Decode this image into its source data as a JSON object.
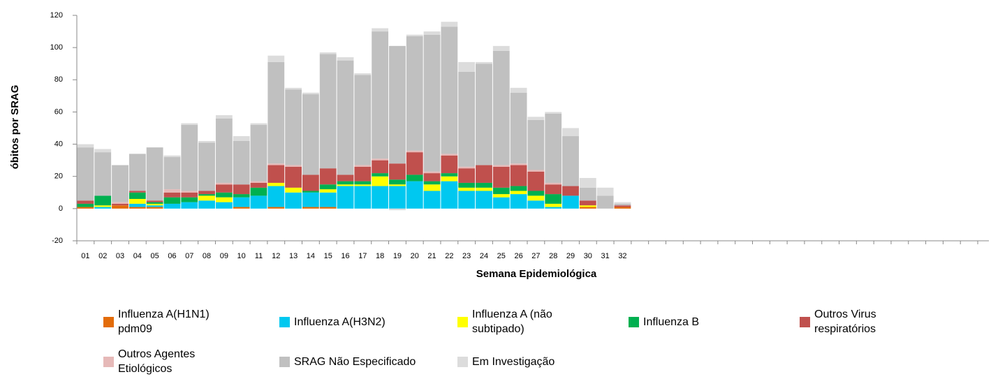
{
  "chart_data": {
    "type": "stacked_bar",
    "y_label": "óbitos por SRAG",
    "x_label": "Semana Epidemiológica",
    "categories": [
      "01",
      "02",
      "03",
      "04",
      "05",
      "06",
      "07",
      "08",
      "09",
      "10",
      "11",
      "12",
      "13",
      "14",
      "15",
      "16",
      "17",
      "18",
      "19",
      "20",
      "21",
      "22",
      "23",
      "24",
      "25",
      "26",
      "27",
      "28",
      "29",
      "30",
      "31",
      "32",
      null,
      null,
      null,
      null,
      null,
      null,
      null,
      null,
      null,
      null,
      null,
      null,
      null,
      null,
      null,
      null,
      null,
      null,
      null,
      null
    ],
    "ylim": [
      -20,
      120
    ],
    "yticks": [
      -20,
      0,
      20,
      40,
      60,
      80,
      100,
      120
    ],
    "series": [
      {
        "name": "Influenza A(H1N1) pdm09",
        "color": "#e36c0a",
        "values": [
          1,
          0,
          2,
          1,
          1,
          0,
          0,
          0,
          0,
          1,
          0,
          1,
          0,
          1,
          1,
          0,
          0,
          0,
          0,
          0,
          0,
          0,
          0,
          0,
          0,
          0,
          0,
          0,
          0,
          1,
          0,
          1,
          null,
          null,
          null,
          null,
          null,
          null,
          null,
          null,
          null,
          null,
          null,
          null,
          null,
          null,
          null,
          null,
          null,
          null,
          null,
          null
        ]
      },
      {
        "name": "Influenza A(H3N2)",
        "color": "#00c8f0",
        "values": [
          0,
          1,
          0,
          2,
          1,
          3,
          4,
          5,
          4,
          6,
          8,
          13,
          10,
          9,
          9,
          14,
          14,
          14,
          14,
          17,
          11,
          17,
          11,
          11,
          7,
          9,
          5,
          1,
          8,
          0,
          0,
          0,
          null,
          null,
          null,
          null,
          null,
          null,
          null,
          null,
          null,
          null,
          null,
          null,
          null,
          null,
          null,
          null,
          null,
          null,
          null,
          null
        ]
      },
      {
        "name": "Influenza A (não subtipado)",
        "color": "#ffff00",
        "values": [
          0,
          1,
          0,
          3,
          1,
          0,
          0,
          3,
          3,
          0,
          0,
          2,
          3,
          0,
          2,
          1,
          1,
          6,
          1,
          0,
          4,
          3,
          2,
          2,
          2,
          2,
          3,
          2,
          0,
          1,
          0,
          0,
          null,
          null,
          null,
          null,
          null,
          null,
          null,
          null,
          null,
          null,
          null,
          null,
          null,
          null,
          null,
          null,
          null,
          null,
          null,
          null
        ]
      },
      {
        "name": "Influenza B",
        "color": "#00b050",
        "values": [
          2,
          6,
          0,
          4,
          1,
          4,
          3,
          1,
          3,
          2,
          5,
          0,
          0,
          1,
          3,
          2,
          2,
          2,
          3,
          4,
          2,
          2,
          3,
          3,
          4,
          3,
          3,
          6,
          0,
          0,
          0,
          0,
          null,
          null,
          null,
          null,
          null,
          null,
          null,
          null,
          null,
          null,
          null,
          null,
          null,
          null,
          null,
          null,
          null,
          null,
          null,
          null
        ]
      },
      {
        "name": "Outros Virus respiratórios",
        "color": "#c0504d",
        "values": [
          2,
          0,
          1,
          1,
          1,
          3,
          3,
          2,
          5,
          6,
          3,
          11,
          13,
          10,
          10,
          4,
          9,
          8,
          10,
          14,
          5,
          11,
          9,
          11,
          13,
          13,
          12,
          6,
          6,
          3,
          0,
          1,
          null,
          null,
          null,
          null,
          null,
          null,
          null,
          null,
          null,
          null,
          null,
          null,
          null,
          null,
          null,
          null,
          null,
          null,
          null,
          null
        ]
      },
      {
        "name": "Outros Agentes Etiológicos",
        "color": "#e6b9b8",
        "values": [
          0,
          0,
          1,
          0,
          0,
          2,
          1,
          0,
          1,
          0,
          1,
          1,
          1,
          0,
          0,
          0,
          1,
          1,
          0,
          1,
          1,
          1,
          1,
          0,
          1,
          1,
          1,
          1,
          0,
          0,
          0,
          0,
          null,
          null,
          null,
          null,
          null,
          null,
          null,
          null,
          null,
          null,
          null,
          null,
          null,
          null,
          null,
          null,
          null,
          null,
          null,
          null
        ]
      },
      {
        "name": "SRAG Não Especificado",
        "color": "#c0c0c0",
        "values": [
          33,
          27,
          23,
          23,
          33,
          20,
          41,
          30,
          40,
          27,
          35,
          63,
          47,
          50,
          71,
          71,
          56,
          79,
          73,
          71,
          85,
          79,
          59,
          63,
          71,
          44,
          31,
          43,
          31,
          8,
          8,
          1,
          null,
          null,
          null,
          null,
          null,
          null,
          null,
          null,
          null,
          null,
          null,
          null,
          null,
          null,
          null,
          null,
          null,
          null,
          null,
          null
        ]
      },
      {
        "name": "Em Investigação",
        "color": "#dcdcdc",
        "values": [
          2,
          2,
          0,
          0,
          0,
          1,
          1,
          1,
          2,
          3,
          1,
          4,
          1,
          1,
          1,
          2,
          1,
          2,
          -1,
          1,
          2,
          3,
          6,
          1,
          3,
          3,
          2,
          1,
          5,
          6,
          5,
          1,
          null,
          null,
          null,
          null,
          null,
          null,
          null,
          null,
          null,
          null,
          null,
          null,
          null,
          null,
          null,
          null,
          null,
          null,
          null,
          null
        ]
      }
    ]
  }
}
